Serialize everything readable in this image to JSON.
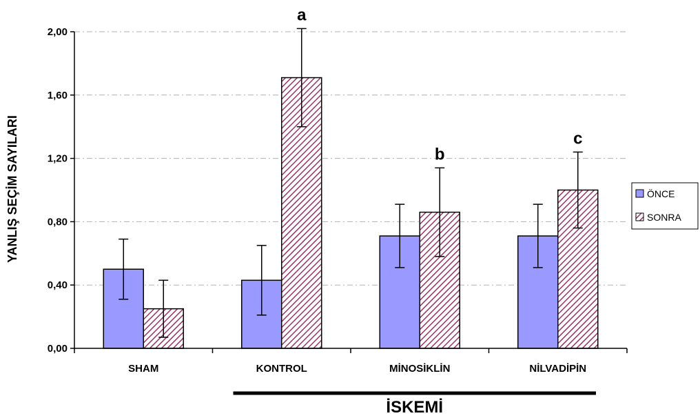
{
  "chart_data": {
    "type": "bar",
    "title": "",
    "ylabel": "YANLIŞ SEÇİM SAYILARI",
    "xlabel": "",
    "ylim": [
      0,
      2.0
    ],
    "yticks": [
      0.0,
      0.4,
      0.8,
      1.2,
      1.6,
      2.0
    ],
    "ytick_labels": [
      "0,00",
      "0,40",
      "0,80",
      "1,20",
      "1,60",
      "2,00"
    ],
    "grid": "horizontal dashed",
    "legend_position": "right",
    "categories": [
      "SHAM",
      "KONTROL",
      "MİNOSİKLİN",
      "NİLVADİPİN"
    ],
    "series": [
      {
        "name": "ÖNCE",
        "values": [
          0.5,
          0.43,
          0.71,
          0.71
        ],
        "errors": [
          0.19,
          0.22,
          0.2,
          0.2
        ],
        "color": "#9999ff",
        "pattern": "solid"
      },
      {
        "name": "SONRA",
        "values": [
          0.25,
          1.71,
          0.86,
          1.0
        ],
        "errors": [
          0.18,
          0.31,
          0.28,
          0.24
        ],
        "color": "#993366",
        "pattern": "diagonal-hatch"
      }
    ],
    "annotations": [
      {
        "text": "a",
        "category": "KONTROL",
        "series": "SONRA"
      },
      {
        "text": "b",
        "category": "MİNOSİKLİN",
        "series": "SONRA"
      },
      {
        "text": "c",
        "category": "NİLVADİPİN",
        "series": "SONRA"
      }
    ],
    "group_label": {
      "text": "İSKEMİ",
      "categories": [
        "KONTROL",
        "MİNOSİKLİN",
        "NİLVADİPİN"
      ]
    }
  }
}
